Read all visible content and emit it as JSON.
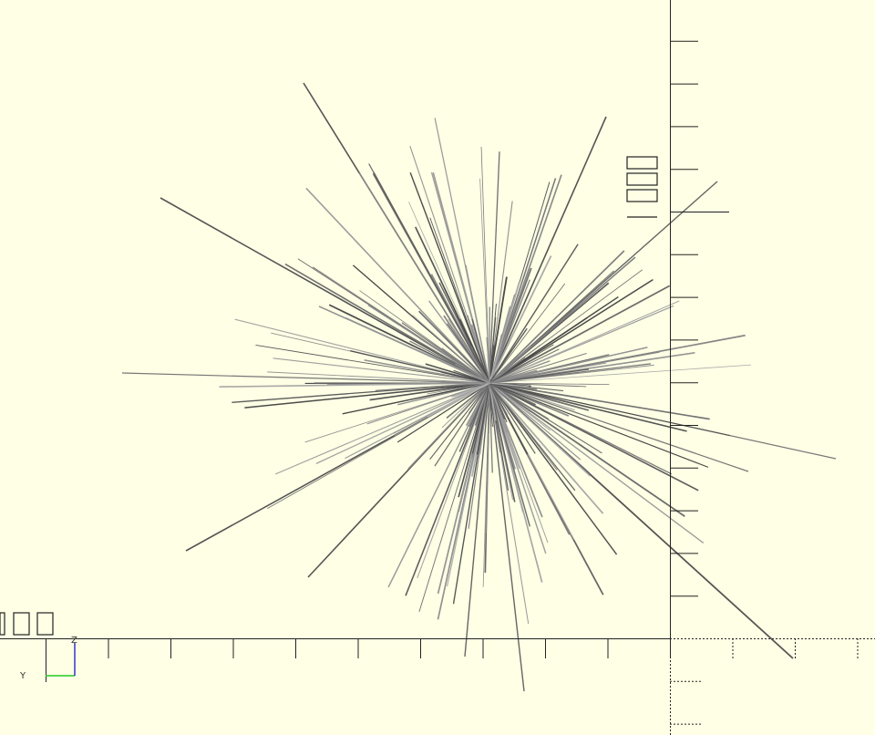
{
  "axis_indicator": {
    "y_label": "Y",
    "z_label": "Z"
  }
}
